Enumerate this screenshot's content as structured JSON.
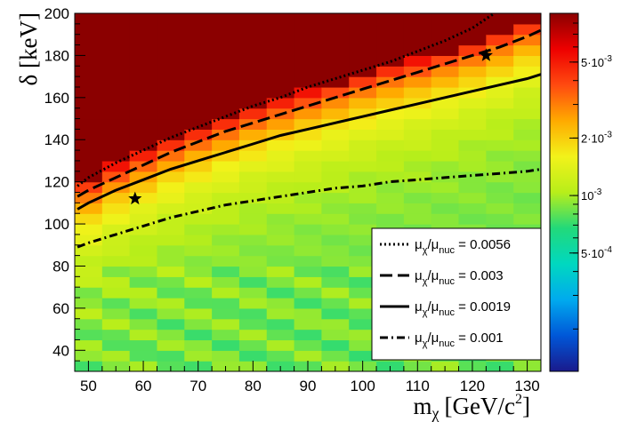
{
  "chart_data": {
    "type": "heatmap",
    "title": "",
    "xlabel": "m",
    "xlabel_symbol": "χ",
    "xlabel_units": "[GeV/c",
    "xlabel_units_power": "2",
    "xlabel_units_close": "]",
    "ylabel": "δ [keV]",
    "xlim": [
      47.5,
      132.5
    ],
    "ylim": [
      30,
      200
    ],
    "x_ticks": [
      "50",
      "60",
      "70",
      "80",
      "90",
      "100",
      "110",
      "120",
      "130"
    ],
    "y_ticks": [
      "40",
      "60",
      "80",
      "100",
      "120",
      "140",
      "160",
      "180",
      "200"
    ],
    "x_bins": [
      47.5,
      52.5,
      57.5,
      62.5,
      67.5,
      72.5,
      77.5,
      82.5,
      87.5,
      92.5,
      97.5,
      102.5,
      107.5,
      112.5,
      117.5,
      122.5,
      127.5,
      132.5
    ],
    "y_bin_width": 5,
    "colorbar": {
      "scale": "log",
      "range": [
        0.00012,
        0.009
      ],
      "tick_values": [
        0.005,
        0.002,
        0.001,
        0.0005
      ],
      "tick_labels": [
        {
          "mant": "5·10",
          "exp": "-3"
        },
        {
          "mant": "2·10",
          "exp": "-3"
        },
        {
          "mant": "10",
          "exp": "-3"
        },
        {
          "mant": "5·10",
          "exp": "-4"
        }
      ],
      "colors": [
        "#1a1a8c",
        "#0057d8",
        "#00aaee",
        "#00d8c0",
        "#22d97a",
        "#b8ee1a",
        "#f2f21a",
        "#ffaa00",
        "#ff4a10",
        "#ee0000",
        "#8b0000"
      ]
    },
    "saturation_edge": {
      "x": [
        50,
        55,
        60,
        65,
        70,
        75,
        80,
        85,
        90,
        95,
        100,
        105,
        110,
        115,
        120,
        125,
        130
      ],
      "delta": [
        121,
        128,
        134,
        140,
        145,
        150,
        155,
        159,
        163,
        167,
        171,
        175,
        178,
        182,
        186,
        191,
        196
      ]
    },
    "series": [
      {
        "name": "0.0056",
        "style": "dotted",
        "x": [
          48,
          50,
          55,
          60,
          65,
          70,
          75,
          80,
          85,
          90,
          95,
          100,
          105,
          110,
          115,
          120,
          124
        ],
        "y": [
          118,
          122,
          129,
          135,
          141,
          146,
          151,
          156,
          160,
          165,
          169,
          173,
          177,
          182,
          187,
          193,
          200
        ]
      },
      {
        "name": "0.003",
        "style": "dashed",
        "x": [
          48,
          50,
          55,
          60,
          65,
          70,
          75,
          80,
          85,
          90,
          95,
          100,
          105,
          110,
          115,
          120,
          125,
          130,
          132.5
        ],
        "y": [
          113,
          116,
          122,
          128,
          134,
          139,
          144,
          148,
          152,
          156,
          160,
          164,
          168,
          172,
          176,
          180,
          184,
          189,
          192
        ]
      },
      {
        "name": "0.0019",
        "style": "solid",
        "x": [
          48,
          50,
          55,
          60,
          65,
          70,
          75,
          80,
          85,
          90,
          95,
          100,
          105,
          110,
          115,
          120,
          125,
          130,
          132.5
        ],
        "y": [
          107,
          110,
          116,
          121,
          126,
          130,
          134,
          138,
          142,
          145,
          148,
          151,
          154,
          157,
          160,
          163,
          166,
          169,
          171
        ]
      },
      {
        "name": "0.001",
        "style": "dashdot",
        "x": [
          48,
          50,
          55,
          60,
          65,
          70,
          75,
          80,
          85,
          90,
          95,
          100,
          105,
          110,
          115,
          120,
          125,
          130,
          132.5
        ],
        "y": [
          89,
          91,
          95,
          99,
          103,
          106,
          109,
          111,
          113,
          115,
          117,
          118,
          120,
          121,
          122,
          123,
          124,
          125,
          126
        ]
      }
    ],
    "markers": [
      {
        "x": 58.5,
        "y": 112,
        "symbol": "star"
      },
      {
        "x": 122.5,
        "y": 180,
        "symbol": "star"
      }
    ],
    "legend": {
      "placement": "bottom-right",
      "entries": [
        {
          "symbol": "μ",
          "sub": "χ",
          "slash": "/",
          "symbol2": "μ",
          "sub2": "nuc",
          "value_text": " = 0.0056",
          "style": "dotted"
        },
        {
          "symbol": "μ",
          "sub": "χ",
          "slash": "/",
          "symbol2": "μ",
          "sub2": "nuc",
          "value_text": " = 0.003",
          "style": "dashed"
        },
        {
          "symbol": "μ",
          "sub": "χ",
          "slash": "/",
          "symbol2": "μ",
          "sub2": "nuc",
          "value_text": " = 0.0019",
          "style": "solid"
        },
        {
          "symbol": "μ",
          "sub": "χ",
          "slash": "/",
          "symbol2": "μ",
          "sub2": "nuc",
          "value_text": " = 0.001",
          "style": "dashdot"
        }
      ]
    }
  }
}
